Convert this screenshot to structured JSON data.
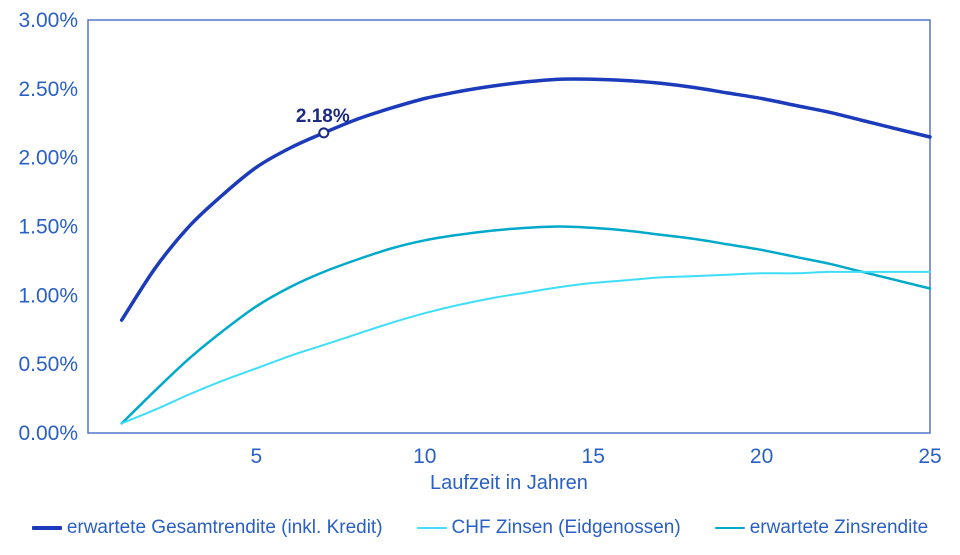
{
  "chart_data": {
    "type": "line",
    "title": "",
    "xlabel": "Laufzeit in Jahren",
    "ylabel": "",
    "x": [
      1,
      2,
      3,
      4,
      5,
      6,
      7,
      8,
      9,
      10,
      11,
      12,
      13,
      14,
      15,
      16,
      17,
      18,
      19,
      20,
      21,
      22,
      23,
      24,
      25
    ],
    "xlim": [
      0,
      25
    ],
    "ylim": [
      0,
      3
    ],
    "x_ticks": [
      5,
      10,
      15,
      20,
      25
    ],
    "y_ticks": [
      {
        "label": "3.00%",
        "value": 3.0
      },
      {
        "label": "2.50%",
        "value": 2.5
      },
      {
        "label": "2.00%",
        "value": 2.0
      },
      {
        "label": "1.50%",
        "value": 1.5
      },
      {
        "label": "1.00%",
        "value": 1.0
      },
      {
        "label": "0.50%",
        "value": 0.5
      },
      {
        "label": "0.00%",
        "value": 0.0
      }
    ],
    "grid": false,
    "legend_position": "bottom",
    "series": [
      {
        "name": "erwartete Gesamtrendite (inkl. Kredit)",
        "color": "#1c3bbb",
        "line_width": 3.5,
        "values": [
          0.82,
          1.2,
          1.5,
          1.73,
          1.93,
          2.07,
          2.18,
          2.28,
          2.36,
          2.43,
          2.48,
          2.52,
          2.55,
          2.57,
          2.57,
          2.56,
          2.54,
          2.51,
          2.47,
          2.43,
          2.38,
          2.33,
          2.27,
          2.21,
          2.15
        ]
      },
      {
        "name": "CHF Zinsen (Eidgenossen)",
        "color": "#3fdef8",
        "line_width": 2,
        "values": [
          0.07,
          0.17,
          0.28,
          0.38,
          0.47,
          0.56,
          0.64,
          0.72,
          0.8,
          0.87,
          0.93,
          0.98,
          1.02,
          1.06,
          1.09,
          1.11,
          1.13,
          1.14,
          1.15,
          1.16,
          1.16,
          1.17,
          1.17,
          1.17,
          1.17
        ]
      },
      {
        "name": "erwartete Zinsrendite",
        "color": "#00a9c9",
        "line_width": 2.5,
        "values": [
          0.07,
          0.31,
          0.54,
          0.74,
          0.92,
          1.06,
          1.17,
          1.26,
          1.34,
          1.4,
          1.44,
          1.47,
          1.49,
          1.5,
          1.49,
          1.47,
          1.44,
          1.41,
          1.37,
          1.33,
          1.28,
          1.23,
          1.17,
          1.11,
          1.05
        ]
      }
    ],
    "annotation": {
      "label": "2.18%",
      "x": 7,
      "y": 2.18,
      "color": "#1b2b80"
    }
  },
  "colors": {
    "axis_text": "#2a5fc6",
    "plot_border": "#5573cb",
    "background": "#ffffff"
  }
}
